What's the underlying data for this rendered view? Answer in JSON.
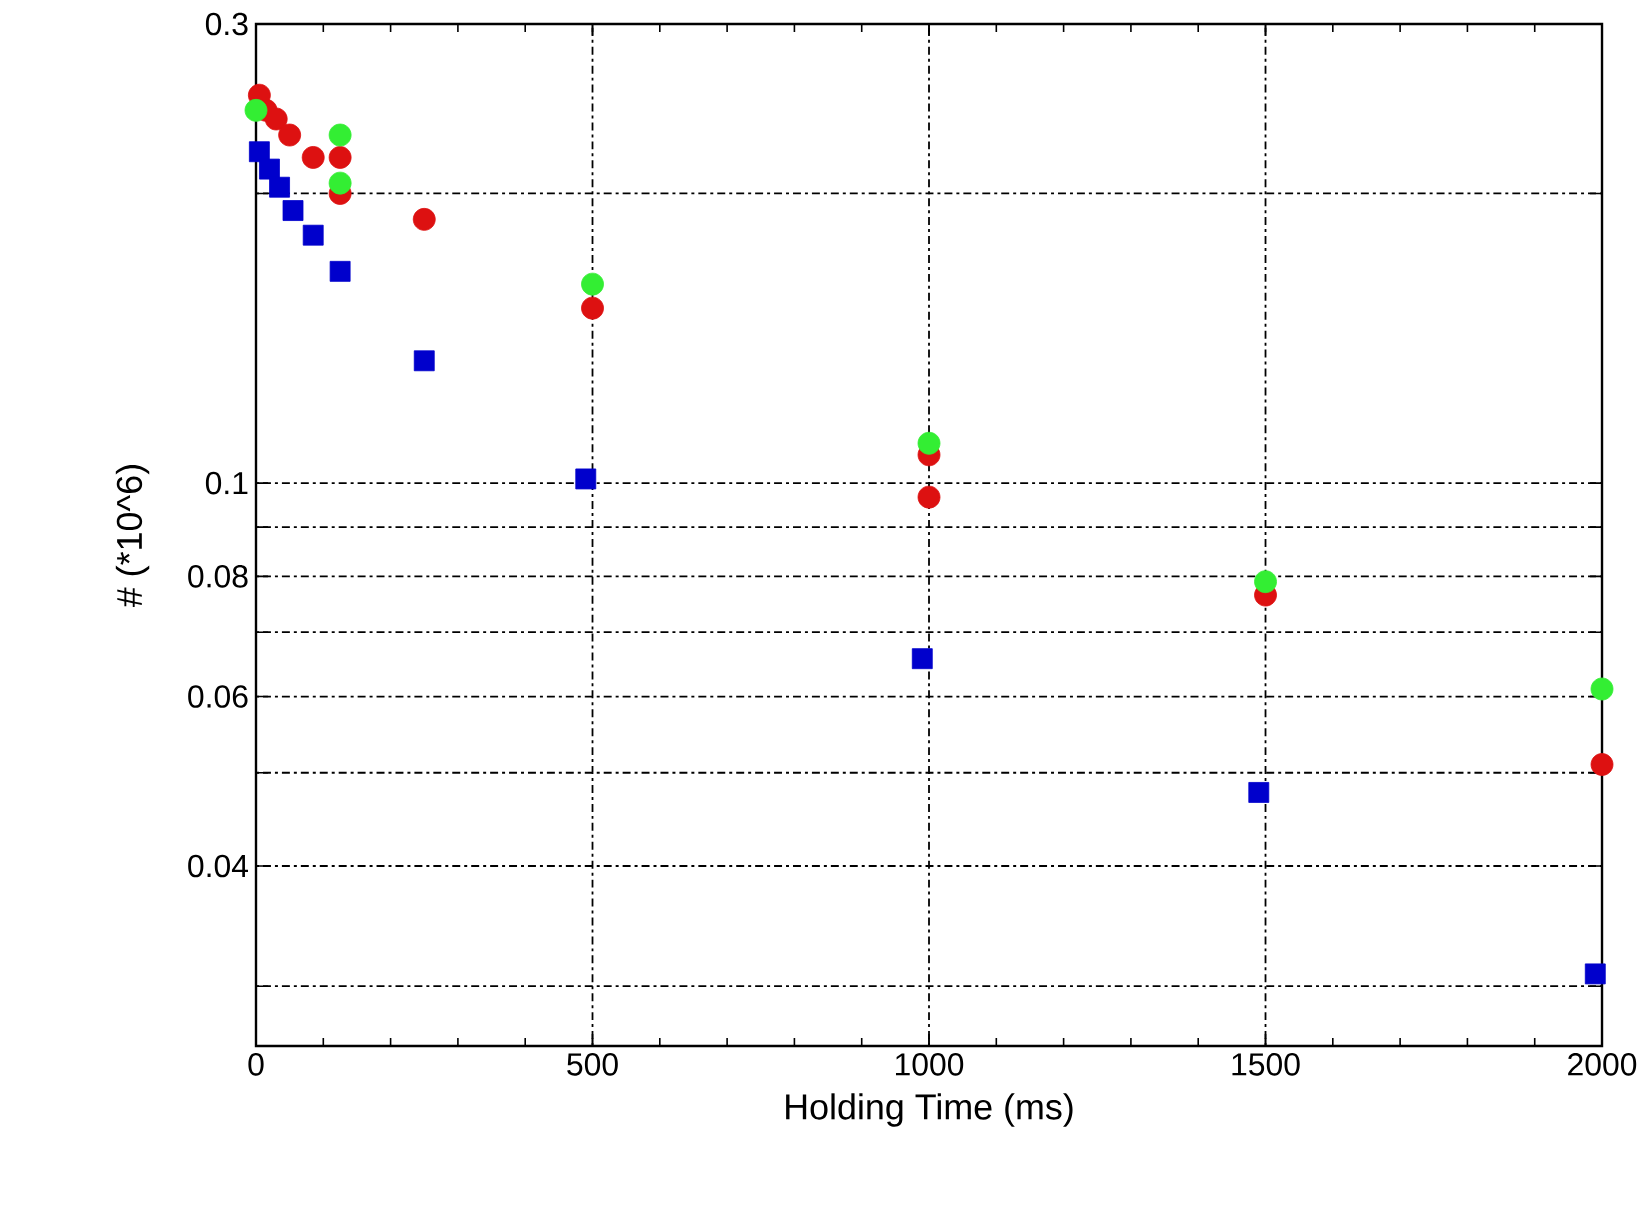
{
  "chart_data": {
    "type": "scatter",
    "xlabel": "Holding Time (ms)",
    "ylabel": "# (*10^6)",
    "log": "y",
    "grid": true,
    "xlim": [
      0,
      2000
    ],
    "xticks": [
      0,
      500,
      1000,
      1500,
      2000
    ],
    "ylim": [
      0.026,
      0.3
    ],
    "yticks": [
      {
        "value": 0.03,
        "label": null
      },
      0.04,
      {
        "value": 0.05,
        "label": null
      },
      0.06,
      {
        "value": 0.07,
        "label": null
      },
      0.08,
      {
        "value": 0.09,
        "label": null
      },
      0.1,
      {
        "value": 0.2,
        "label": null
      },
      0.3
    ],
    "series": [
      {
        "color": "#33ee33",
        "marker": "circle",
        "x": [
          0,
          125,
          125,
          500,
          1000,
          1500,
          2000
        ],
        "values": [
          0.244,
          0.23,
          0.205,
          0.161,
          0.11,
          0.079,
          0.0611
        ]
      },
      {
        "color": "#dd1111",
        "marker": "circle",
        "x": [
          5,
          15,
          30,
          50,
          85,
          125,
          125,
          250,
          500,
          1000,
          1000,
          1500,
          2000
        ],
        "values": [
          0.253,
          0.244,
          0.239,
          0.23,
          0.218,
          0.218,
          0.2,
          0.188,
          0.152,
          0.107,
          0.0967,
          0.0765,
          0.051
        ]
      },
      {
        "color": "#0000cc",
        "marker": "square",
        "x": [
          5,
          20,
          35,
          55,
          85,
          125,
          250,
          490,
          990,
          1490,
          1990
        ],
        "values": [
          0.221,
          0.212,
          0.203,
          0.192,
          0.181,
          0.166,
          0.134,
          0.101,
          0.0657,
          0.0477,
          0.0309
        ]
      }
    ]
  }
}
